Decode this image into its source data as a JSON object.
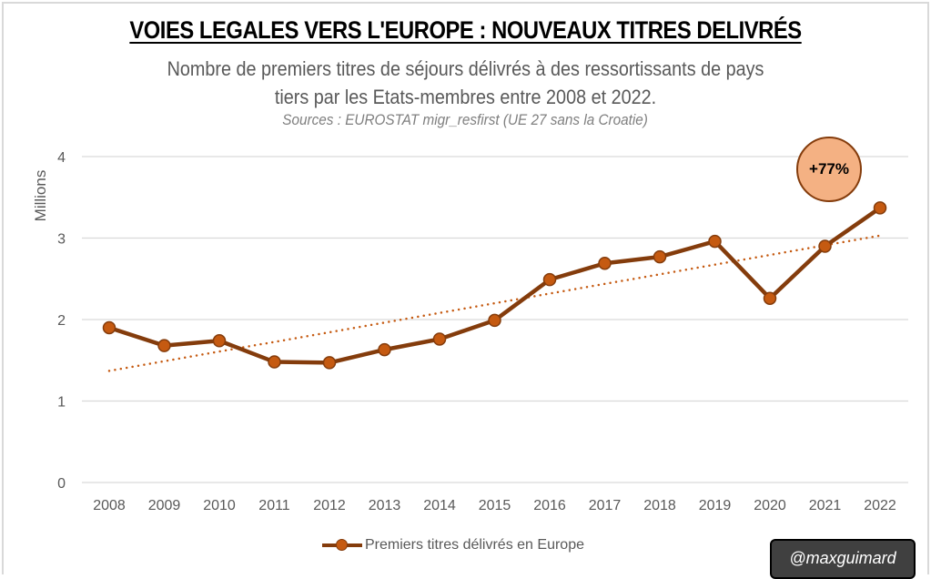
{
  "chart_data": {
    "type": "line",
    "title": "VOIES LEGALES VERS L'EUROPE : NOUVEAUX TITRES DELIVRÉS",
    "subtitle_lines": [
      "Nombre de premiers titres de séjours délivrés à des ressortissants de pays",
      "tiers par les Etats-membres entre 2008 et 2022."
    ],
    "source": "Sources : EUROSTAT migr_resfirst (UE 27 sans la Croatie)",
    "xlabel": "",
    "ylabel": "Millions",
    "categories": [
      "2008",
      "2009",
      "2010",
      "2011",
      "2012",
      "2013",
      "2014",
      "2015",
      "2016",
      "2017",
      "2018",
      "2019",
      "2020",
      "2021",
      "2022"
    ],
    "series": [
      {
        "name": "Premiers titres délivrés en Europe",
        "values": [
          1.9,
          1.68,
          1.74,
          1.48,
          1.47,
          1.63,
          1.76,
          1.99,
          2.49,
          2.69,
          2.77,
          2.96,
          2.26,
          2.9,
          3.37
        ],
        "color": "#843C0C",
        "marker_color": "#C55A11"
      }
    ],
    "trendline": {
      "type": "linear",
      "start": 1.37,
      "end": 3.03,
      "color": "#C55A11",
      "style": "dotted"
    },
    "yticks": [
      "0",
      "1",
      "2",
      "3",
      "4"
    ],
    "ylim": [
      0,
      4
    ],
    "grid": true,
    "legend_position": "bottom",
    "annotation": {
      "text": "+77%",
      "fill": "#F4B183",
      "border": "#843C0C",
      "near": "2021-2022"
    }
  },
  "credit": "@maxguimard"
}
